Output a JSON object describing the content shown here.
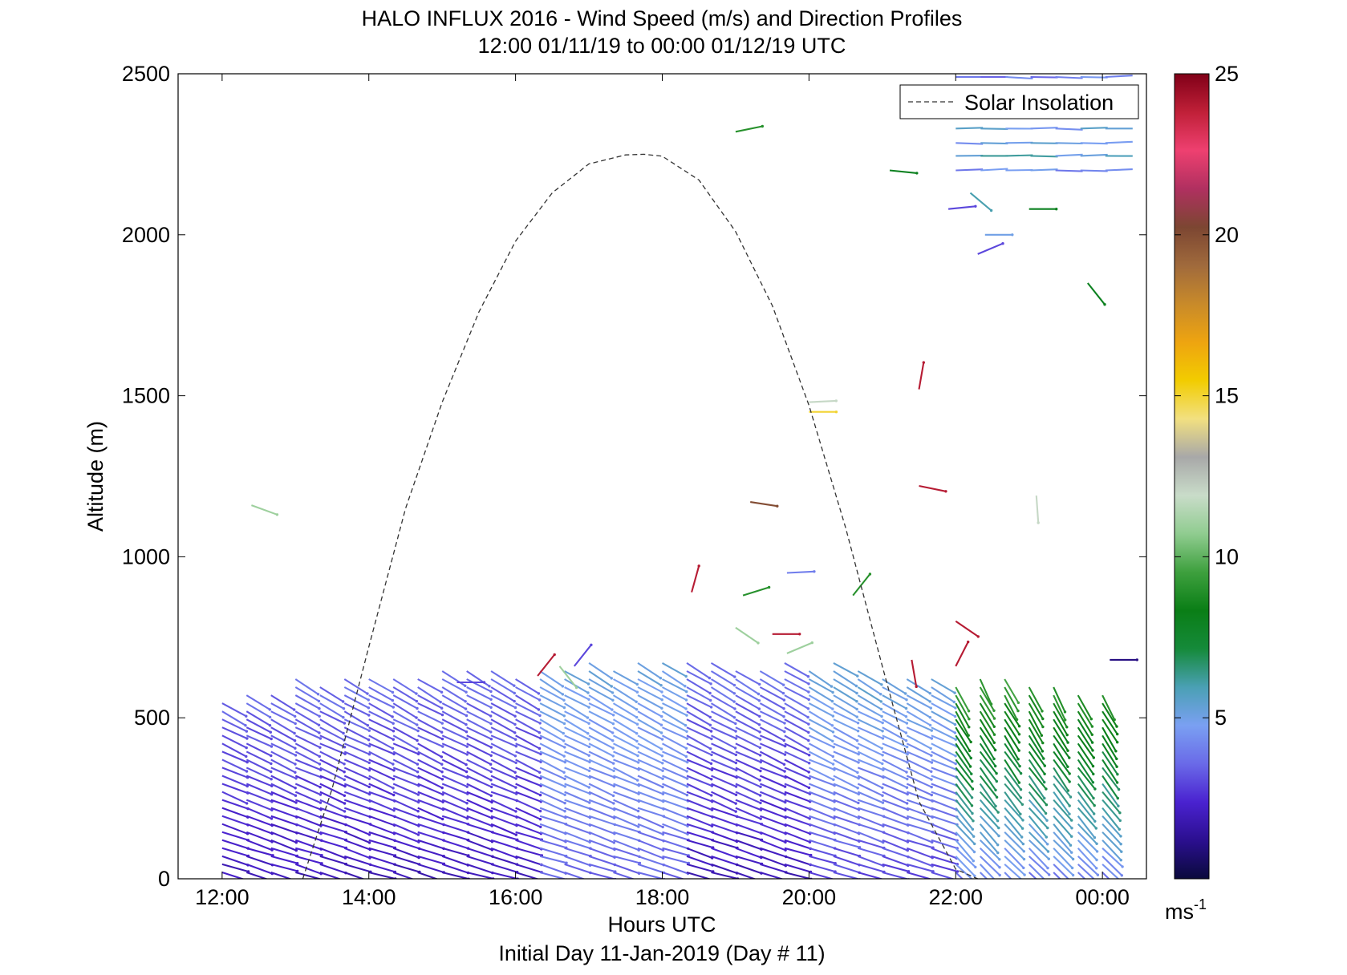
{
  "chart_data": {
    "type": "wind-barb-profile",
    "title": "HALO INFLUX 2016 - Wind Speed (m/s) and Direction Profiles",
    "subtitle": "12:00 01/11/19 to 00:00 01/12/19  UTC",
    "xlabel": "Hours UTC",
    "xlabel2": "Initial Day 11-Jan-2019 (Day # 11)",
    "ylabel": "Altitude (m)",
    "x_ticks": [
      "12:00",
      "14:00",
      "16:00",
      "18:00",
      "20:00",
      "22:00",
      "00:00"
    ],
    "x_tick_values": [
      12,
      14,
      16,
      18,
      20,
      22,
      24
    ],
    "xlim": [
      11.4,
      24.6
    ],
    "y_ticks": [
      "0",
      "500",
      "1000",
      "1500",
      "2000",
      "2500"
    ],
    "y_tick_values": [
      0,
      500,
      1000,
      1500,
      2000,
      2500
    ],
    "ylim": [
      0,
      2500
    ],
    "legend": {
      "label": "Solar Insolation",
      "placement": "top-right"
    },
    "solar_insolation": {
      "x": [
        13.1,
        13.5,
        14.0,
        14.5,
        15.0,
        15.5,
        16.0,
        16.5,
        17.0,
        17.5,
        17.75,
        18.0,
        18.5,
        19.0,
        19.5,
        20.0,
        20.5,
        21.0,
        21.5,
        22.0,
        22.3
      ],
      "y": [
        0,
        280,
        720,
        1150,
        1480,
        1760,
        1980,
        2130,
        2220,
        2248,
        2250,
        2244,
        2170,
        2010,
        1780,
        1470,
        1090,
        660,
        240,
        30,
        0
      ]
    },
    "colorbar": {
      "min": 0,
      "max": 25,
      "ticks": [
        "5",
        "10",
        "15",
        "20",
        "25"
      ],
      "tick_values": [
        5,
        10,
        15,
        20,
        25
      ],
      "unit_base": "ms",
      "unit_exp": "-1",
      "colors": [
        "#0a0a3c",
        "#2b0f8f",
        "#4a22d0",
        "#6a6ae8",
        "#7aa0f2",
        "#4aa0b4",
        "#158a3a",
        "#0a7e16",
        "#3ea03e",
        "#90cc90",
        "#c9dcc9",
        "#a8a8a8",
        "#f2e080",
        "#f2cc00",
        "#eea410",
        "#c88a2a",
        "#a06a3c",
        "#7c4632",
        "#b03060",
        "#ee4070",
        "#c02038",
        "#800018"
      ]
    }
  }
}
